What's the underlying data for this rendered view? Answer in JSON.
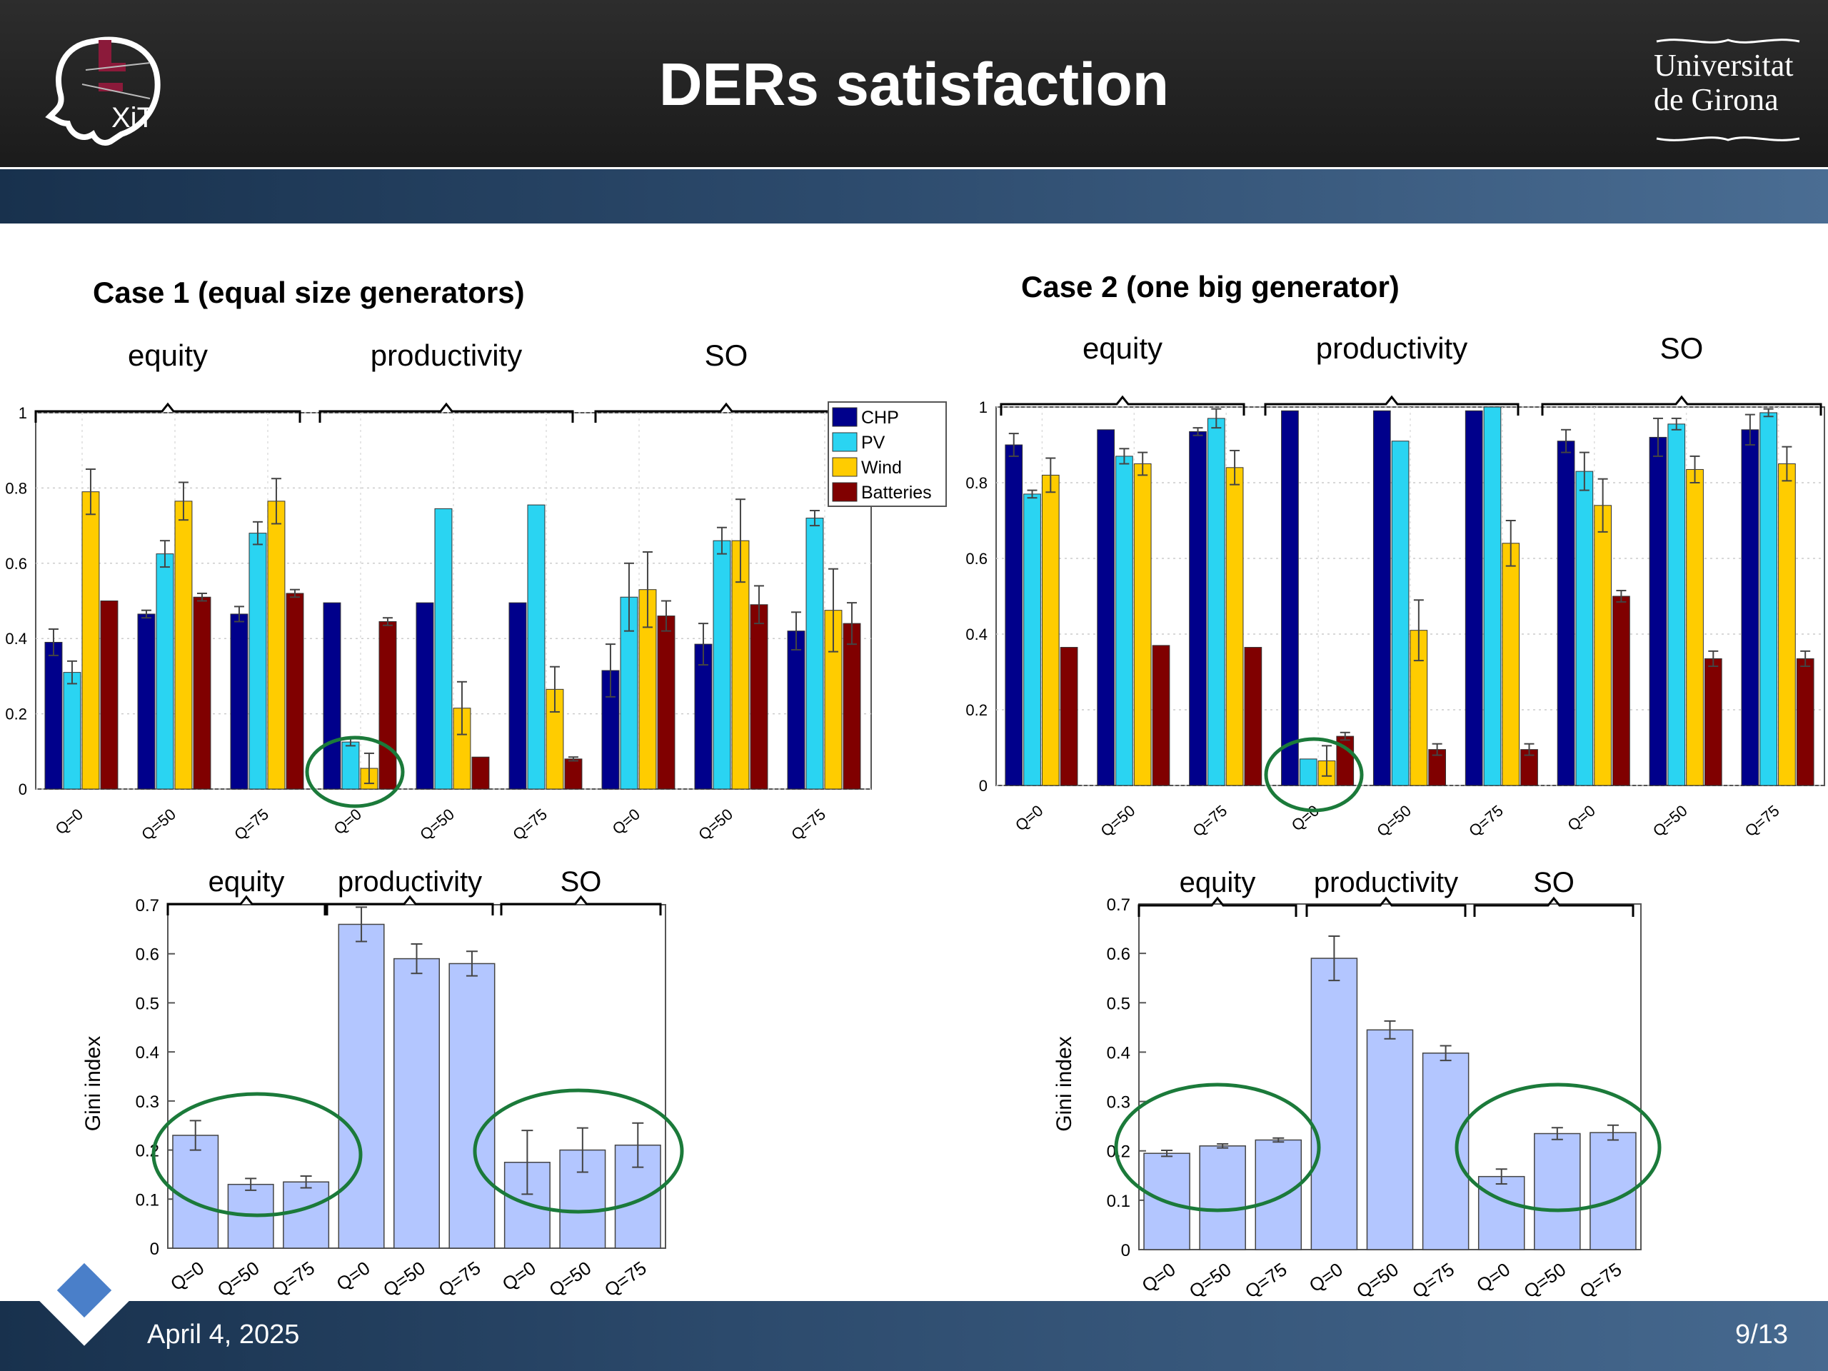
{
  "slide": {
    "title": "DERs satisfaction",
    "university_line1": "Universitat",
    "university_line2": "de Girona",
    "logo_left_text": "XiT",
    "date": "April 4, 2025",
    "page": "9/13"
  },
  "cases": {
    "case1_title": "Case 1 (equal size generators)",
    "case2_title": "Case 2  (one big generator)"
  },
  "colors": {
    "CHP": "#00008b",
    "PV": "#2ad4f2",
    "Wind": "#ffcc00",
    "Batteries": "#800000",
    "gini_bar": "#b3c6ff",
    "highlight_circle": "#1b7a3a"
  },
  "chart_data": [
    {
      "type": "bar",
      "name_hint": "case1-satisfaction",
      "groups": [
        "equity",
        "productivity",
        "SO"
      ],
      "categories": [
        "Q=0",
        "Q=50",
        "Q=75",
        "Q=0",
        "Q=50",
        "Q=75",
        "Q=0",
        "Q=50",
        "Q=75"
      ],
      "series": [
        {
          "name": "CHP",
          "values": [
            0.39,
            0.465,
            0.465,
            0.495,
            0.495,
            0.495,
            0.315,
            0.385,
            0.42
          ],
          "errors": [
            0.035,
            0.01,
            0.02,
            0,
            0,
            0,
            0.07,
            0.055,
            0.05
          ]
        },
        {
          "name": "PV",
          "values": [
            0.31,
            0.625,
            0.68,
            0.125,
            0.745,
            0.755,
            0.51,
            0.66,
            0.72
          ],
          "errors": [
            0.03,
            0.035,
            0.03,
            0.01,
            0,
            0,
            0.09,
            0.035,
            0.02
          ]
        },
        {
          "name": "Wind",
          "values": [
            0.79,
            0.765,
            0.765,
            0.055,
            0.215,
            0.265,
            0.53,
            0.66,
            0.475
          ],
          "errors": [
            0.06,
            0.05,
            0.06,
            0.04,
            0.07,
            0.06,
            0.1,
            0.11,
            0.11
          ]
        },
        {
          "name": "Batteries",
          "values": [
            0.5,
            0.51,
            0.52,
            0.445,
            0.085,
            0.08,
            0.46,
            0.49,
            0.44
          ],
          "errors": [
            0,
            0.01,
            0.01,
            0.01,
            0,
            0.005,
            0.04,
            0.05,
            0.055
          ]
        }
      ],
      "ylim": [
        0,
        1
      ],
      "yticks": [
        "0",
        "0.2",
        "0.4",
        "0.6",
        "0.8",
        "1"
      ],
      "legend": "top-right",
      "grid": true
    },
    {
      "type": "bar",
      "name_hint": "case2-satisfaction",
      "groups": [
        "equity",
        "productivity",
        "SO"
      ],
      "categories": [
        "Q=0",
        "Q=50",
        "Q=75",
        "Q=0",
        "Q=50",
        "Q=75",
        "Q=0",
        "Q=50",
        "Q=75"
      ],
      "series": [
        {
          "name": "CHP",
          "values": [
            0.9,
            0.94,
            0.935,
            0.99,
            0.99,
            0.99,
            0.91,
            0.92,
            0.94
          ],
          "errors": [
            0.03,
            0,
            0.01,
            0,
            0,
            0,
            0.03,
            0.05,
            0.04
          ]
        },
        {
          "name": "PV",
          "values": [
            0.77,
            0.87,
            0.97,
            0.07,
            0.91,
            1.0,
            0.83,
            0.955,
            0.985
          ],
          "errors": [
            0.01,
            0.02,
            0.025,
            0,
            0,
            0,
            0.05,
            0.015,
            0.01
          ]
        },
        {
          "name": "Wind",
          "values": [
            0.82,
            0.85,
            0.84,
            0.065,
            0.41,
            0.64,
            0.74,
            0.835,
            0.85
          ],
          "errors": [
            0.045,
            0.03,
            0.045,
            0.04,
            0.08,
            0.06,
            0.07,
            0.035,
            0.045
          ]
        },
        {
          "name": "Batteries",
          "values": [
            0.365,
            0.37,
            0.365,
            0.13,
            0.095,
            0.095,
            0.5,
            0.335,
            0.335
          ],
          "errors": [
            0,
            0,
            0,
            0.01,
            0.015,
            0.015,
            0.015,
            0.02,
            0.02
          ]
        }
      ],
      "ylim": [
        0,
        1
      ],
      "yticks": [
        "0",
        "0.2",
        "0.4",
        "0.6",
        "0.8",
        "1"
      ],
      "grid": true
    },
    {
      "type": "bar",
      "name_hint": "case1-gini",
      "groups": [
        "equity",
        "productivity",
        "SO"
      ],
      "categories": [
        "Q=0",
        "Q=50",
        "Q=75",
        "Q=0",
        "Q=50",
        "Q=75",
        "Q=0",
        "Q=50",
        "Q=75"
      ],
      "values": [
        0.23,
        0.13,
        0.135,
        0.66,
        0.59,
        0.58,
        0.175,
        0.2,
        0.21
      ],
      "errors": [
        0.03,
        0.012,
        0.012,
        0.035,
        0.03,
        0.025,
        0.065,
        0.045,
        0.045
      ],
      "ylabel": "Gini index",
      "ylim": [
        0,
        0.7
      ],
      "yticks": [
        "0",
        "0.1",
        "0.2",
        "0.3",
        "0.4",
        "0.5",
        "0.6",
        "0.7"
      ]
    },
    {
      "type": "bar",
      "name_hint": "case2-gini",
      "groups": [
        "equity",
        "productivity",
        "SO"
      ],
      "categories": [
        "Q=0",
        "Q=50",
        "Q=75",
        "Q=0",
        "Q=50",
        "Q=75",
        "Q=0",
        "Q=50",
        "Q=75"
      ],
      "values": [
        0.195,
        0.21,
        0.222,
        0.59,
        0.445,
        0.398,
        0.148,
        0.235,
        0.237
      ],
      "errors": [
        0.006,
        0.004,
        0.004,
        0.045,
        0.018,
        0.015,
        0.015,
        0.012,
        0.015
      ],
      "ylabel": "Gini index",
      "ylim": [
        0,
        0.7
      ],
      "yticks": [
        "0",
        "0.1",
        "0.2",
        "0.3",
        "0.4",
        "0.5",
        "0.6",
        "0.7"
      ]
    }
  ]
}
